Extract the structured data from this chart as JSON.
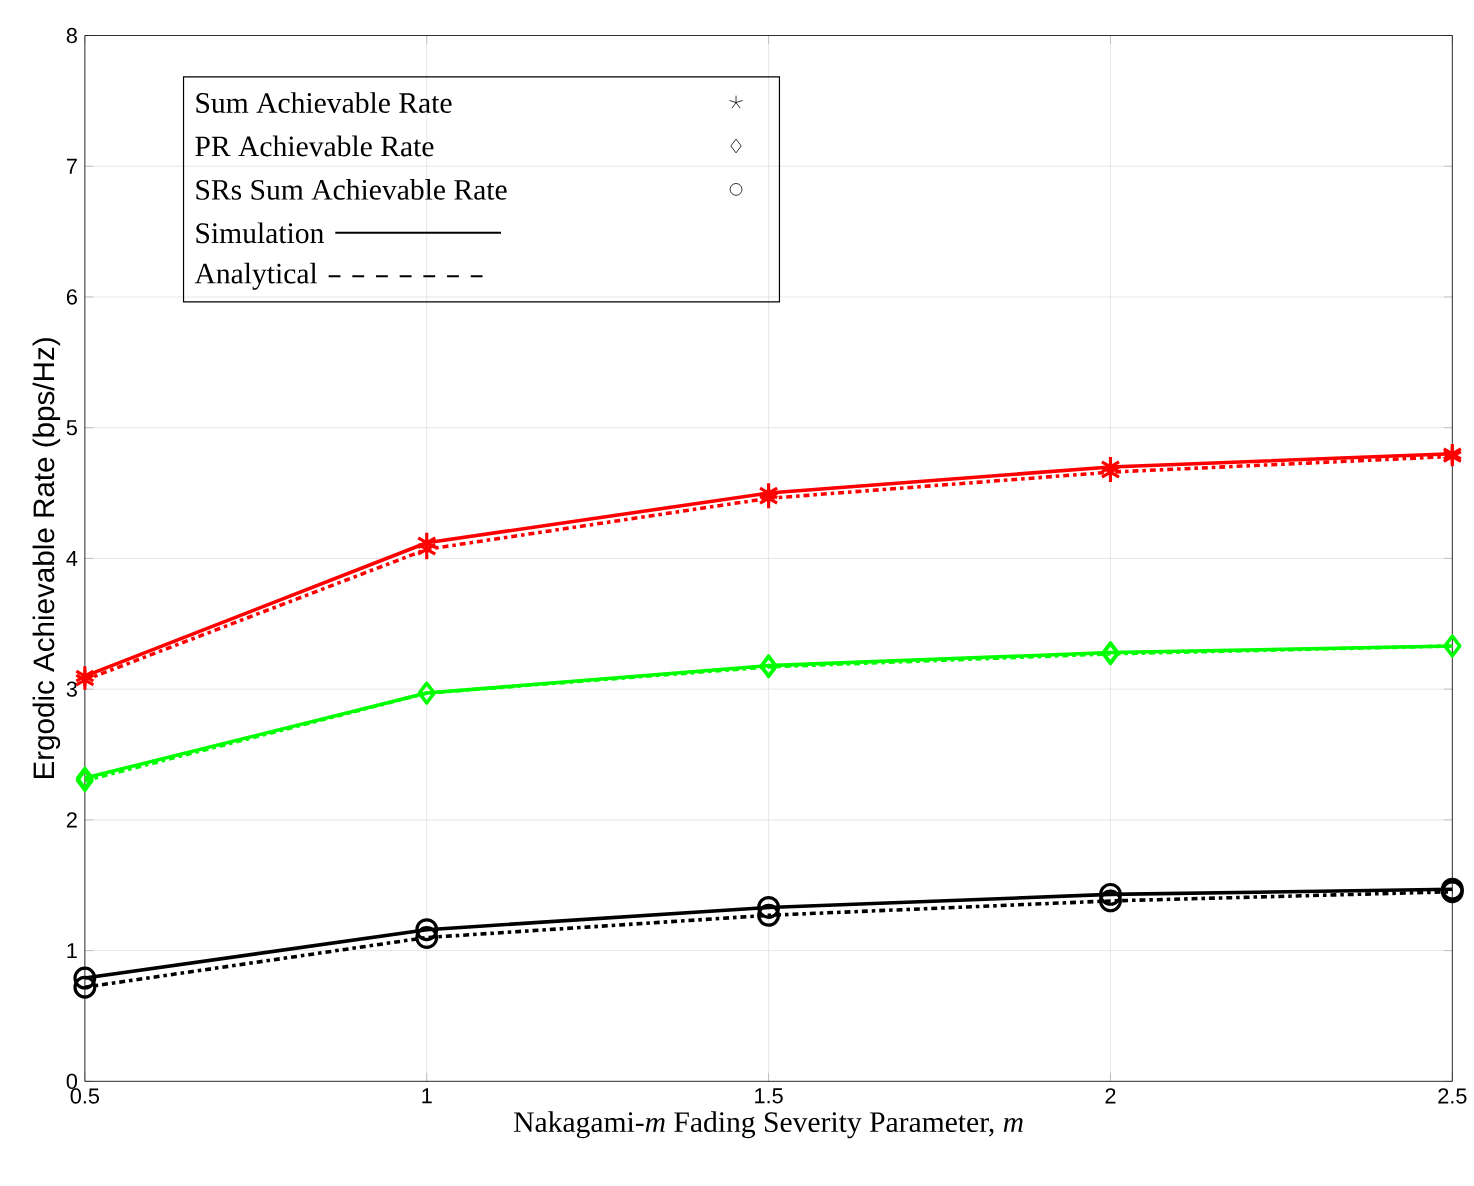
{
  "chart_data": {
    "type": "line",
    "xlabel": "Nakagami-*m* Fading Severity Parameter, *m*",
    "ylabel": "Ergodic Achievable Rate (bps/Hz)",
    "x": [
      0.5,
      1,
      1.5,
      2,
      2.5
    ],
    "series": [
      {
        "color": "#ff0000",
        "marker": "cross",
        "line_style": "solid",
        "values": [
          3.1,
          4.12,
          4.5,
          4.7,
          4.8
        ]
      },
      {
        "color": "#ff0000",
        "marker": "cross",
        "line_style": "dashed",
        "values": [
          3.07,
          4.07,
          4.46,
          4.66,
          4.78
        ]
      },
      {
        "color": "#00ff00",
        "marker": "diamond",
        "line_style": "solid",
        "values": [
          2.32,
          2.97,
          3.18,
          3.28,
          3.33
        ]
      },
      {
        "color": "#00ff00",
        "marker": "diamond",
        "line_style": "dashed",
        "values": [
          2.3,
          2.97,
          3.17,
          3.27,
          3.33
        ]
      },
      {
        "color": "#000000",
        "marker": "circle",
        "line_style": "solid",
        "values": [
          0.79,
          1.16,
          1.33,
          1.43,
          1.47
        ]
      },
      {
        "color": "#000000",
        "marker": "circle",
        "line_style": "dashed",
        "values": [
          0.72,
          1.1,
          1.27,
          1.38,
          1.45
        ]
      }
    ],
    "xlim": [
      0.5,
      2.5
    ],
    "xticks": [
      0.5,
      1,
      1.5,
      2,
      2.5
    ],
    "ylim": [
      0,
      8
    ],
    "yticks": [
      0,
      1,
      2,
      3,
      4,
      5,
      6,
      7,
      8
    ],
    "grid": true,
    "annotations": [
      "Sum Achievable Rate",
      "PR Achievable Rate",
      "SRs Sum Achievable Rate",
      "Simulation",
      "Analytical"
    ]
  }
}
